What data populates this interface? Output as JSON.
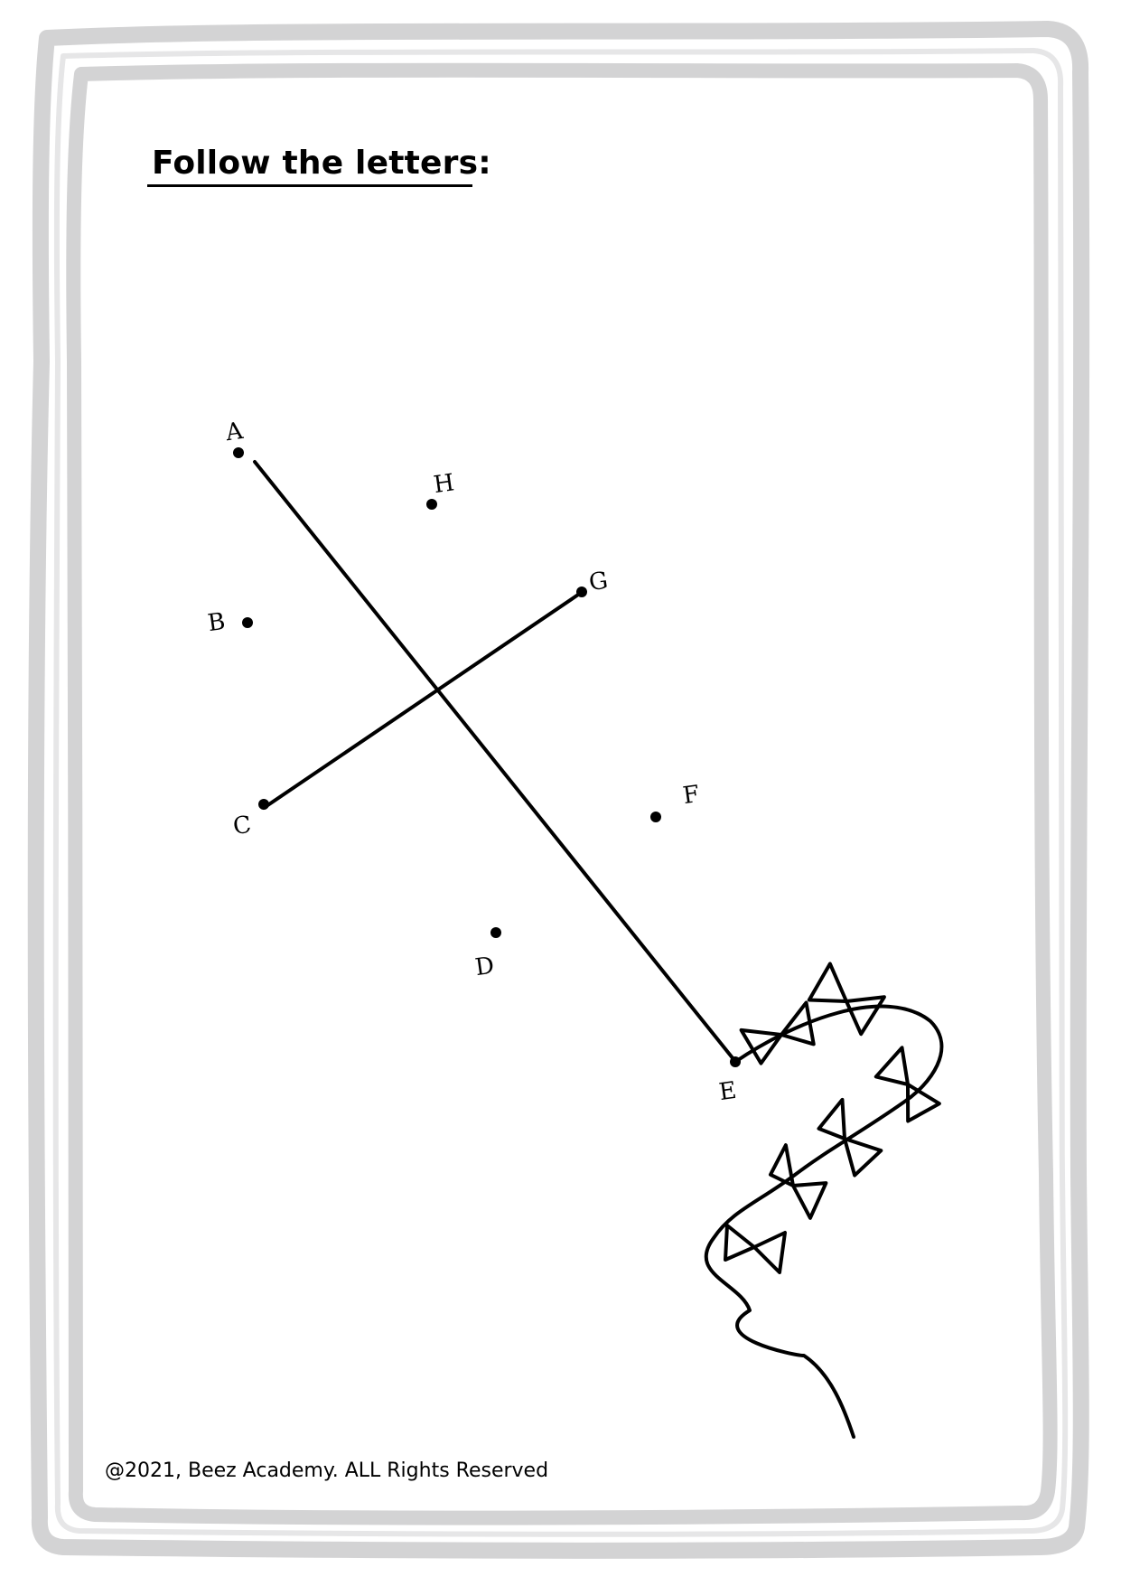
{
  "worksheet": {
    "title": "Follow the letters:",
    "footer": "@2021, Beez Academy. ALL Rights Reserved",
    "points": [
      {
        "label": "A"
      },
      {
        "label": "B"
      },
      {
        "label": "C"
      },
      {
        "label": "D"
      },
      {
        "label": "E"
      },
      {
        "label": "F"
      },
      {
        "label": "G"
      },
      {
        "label": "H"
      }
    ],
    "frame_color": "#d3d3d4",
    "ink_color": "#000000"
  }
}
